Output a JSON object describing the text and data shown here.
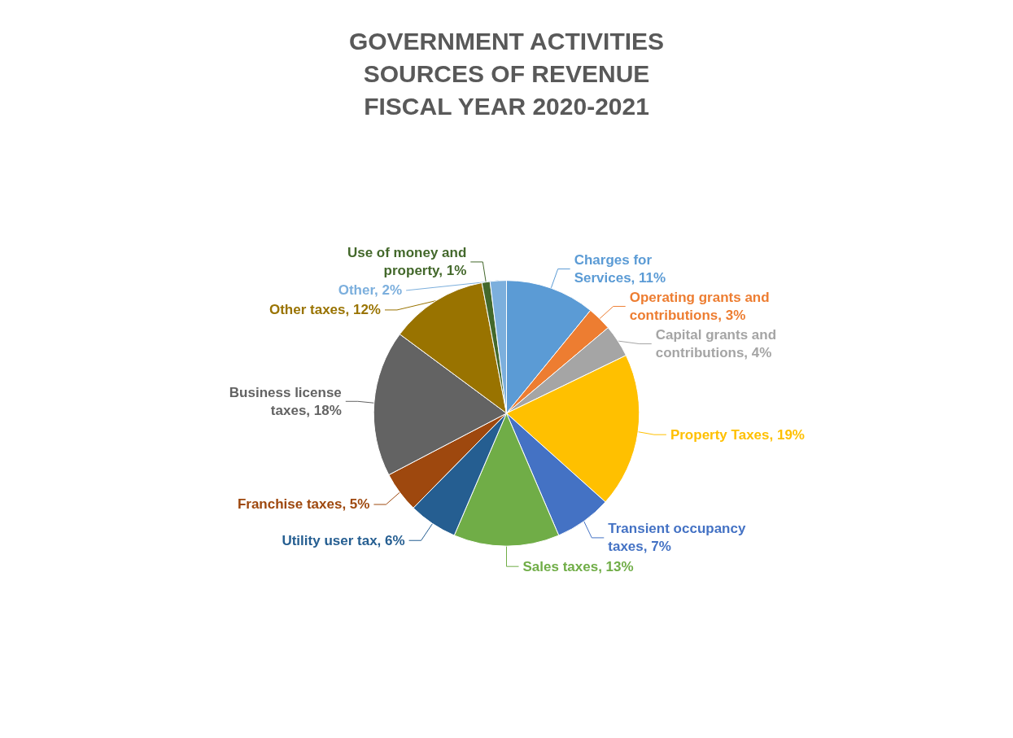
{
  "chart_data": {
    "type": "pie",
    "title": "GOVERNMENT ACTIVITIES\nSOURCES OF REVENUE\nFISCAL YEAR 2020-2021",
    "categories": [
      "Charges for Services",
      "Operating grants and contributions",
      "Capital grants and contributions",
      "Property Taxes",
      "Transient occupancy taxes",
      "Sales taxes",
      "Utility user tax",
      "Franchise taxes",
      "Business license taxes",
      "Other taxes",
      "Use of money and property",
      "Other"
    ],
    "values": [
      11,
      3,
      4,
      19,
      7,
      13,
      6,
      5,
      18,
      12,
      1,
      2
    ],
    "colors": [
      "#5b9bd5",
      "#ed7d31",
      "#a5a5a5",
      "#ffc000",
      "#4472c4",
      "#70ad47",
      "#255e91",
      "#9e480e",
      "#636363",
      "#997300",
      "#43682b",
      "#7cafdd"
    ],
    "value_labels": [
      "11%",
      "3%",
      "4%",
      "19%",
      "7%",
      "13%",
      "6%",
      "5%",
      "18%",
      "12%",
      "1%",
      "2%"
    ],
    "legend": false
  }
}
